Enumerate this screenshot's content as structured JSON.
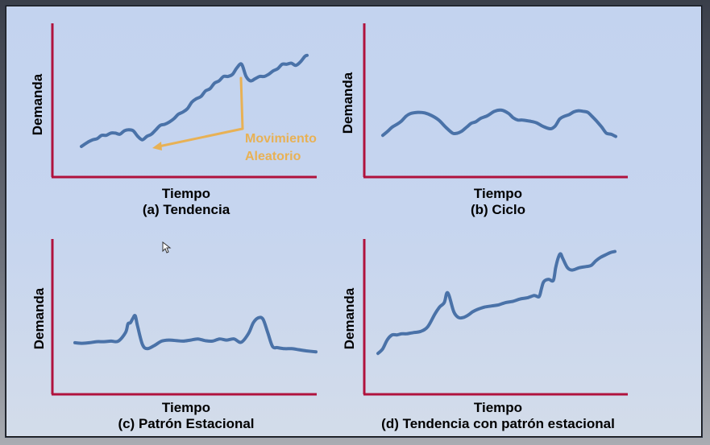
{
  "colors": {
    "axis": "#b0123d",
    "series": "#4a72a8",
    "annotation": "#e8b155"
  },
  "chart_data": [
    {
      "type": "line",
      "xlabel": "Tiempo",
      "ylabel": "Demanda",
      "caption": "(a) Tendencia",
      "annotation": {
        "line1": "Movimiento",
        "line2": "Aleatorio"
      },
      "series": [
        {
          "x": [
            0,
            3,
            5,
            7,
            9,
            11,
            13,
            15,
            17,
            19,
            21,
            23,
            25,
            27,
            29,
            31,
            33,
            35,
            37,
            39,
            41,
            43,
            45,
            47,
            49,
            51,
            53,
            55,
            57,
            59,
            61,
            63,
            65,
            67,
            69,
            71,
            73,
            75,
            77,
            79,
            81,
            83,
            85,
            87,
            89,
            91,
            93,
            95,
            97,
            99,
            100
          ],
          "values": [
            8,
            12,
            14,
            15,
            18,
            18,
            20,
            20,
            19,
            22,
            23,
            22,
            17,
            14,
            17,
            19,
            23,
            27,
            28,
            30,
            33,
            37,
            39,
            42,
            48,
            51,
            53,
            58,
            60,
            65,
            67,
            71,
            71,
            73,
            79,
            82,
            71,
            67,
            69,
            71,
            71,
            73,
            76,
            78,
            82,
            82,
            83,
            81,
            84,
            89,
            90
          ]
        }
      ]
    },
    {
      "type": "line",
      "xlabel": "Tiempo",
      "ylabel": "Demanda",
      "caption": "(b) Ciclo",
      "series": [
        {
          "x": [
            0,
            2,
            4,
            6,
            8,
            10,
            12,
            15,
            18,
            21,
            24,
            27,
            30,
            32,
            34,
            36,
            38,
            40,
            42,
            45,
            48,
            51,
            54,
            56,
            58,
            60,
            63,
            66,
            69,
            72,
            74,
            76,
            78,
            80,
            82,
            84,
            86,
            88,
            90,
            92,
            94,
            96,
            98,
            100
          ],
          "values": [
            10,
            17,
            25,
            30,
            36,
            45,
            50,
            52,
            51,
            46,
            38,
            25,
            14,
            14,
            18,
            25,
            32,
            35,
            41,
            46,
            54,
            56,
            50,
            42,
            38,
            38,
            36,
            33,
            26,
            22,
            27,
            40,
            45,
            48,
            53,
            55,
            54,
            52,
            44,
            35,
            25,
            14,
            12,
            8
          ]
        }
      ]
    },
    {
      "type": "line",
      "xlabel": "Tiempo",
      "ylabel": "Demanda",
      "caption": "(c) Patrón Estacional",
      "series": [
        {
          "x": [
            0,
            3,
            6,
            9,
            12,
            15,
            18,
            21,
            22,
            23,
            24,
            25,
            26,
            28,
            30,
            33,
            36,
            39,
            42,
            45,
            48,
            51,
            54,
            57,
            60,
            63,
            66,
            69,
            72,
            74,
            76,
            78,
            80,
            82,
            84,
            87,
            90,
            93,
            96,
            100
          ],
          "values": [
            21,
            20,
            21,
            23,
            23,
            24,
            24,
            40,
            56,
            58,
            66,
            71,
            52,
            18,
            10,
            16,
            24,
            26,
            25,
            24,
            26,
            28,
            25,
            24,
            28,
            26,
            28,
            22,
            38,
            58,
            67,
            65,
            40,
            14,
            12,
            10,
            10,
            8,
            6,
            4
          ]
        }
      ]
    },
    {
      "type": "line",
      "xlabel": "Tiempo",
      "ylabel": "Demanda",
      "caption": "(d) Tendencia con patrón estacional",
      "series": [
        {
          "x": [
            0,
            2,
            4,
            6,
            8,
            10,
            12,
            15,
            18,
            21,
            24,
            26,
            28,
            29,
            30,
            32,
            34,
            36,
            38,
            40,
            42,
            45,
            48,
            51,
            54,
            57,
            60,
            63,
            66,
            68,
            69,
            70,
            72,
            74,
            75,
            76,
            77,
            78,
            80,
            82,
            85,
            88,
            90,
            92,
            94,
            96,
            98,
            100
          ],
          "values": [
            4,
            8,
            16,
            20,
            20,
            21,
            21,
            22,
            23,
            27,
            38,
            44,
            48,
            56,
            54,
            40,
            35,
            35,
            37,
            40,
            42,
            44,
            45,
            46,
            48,
            49,
            51,
            52,
            54,
            53,
            60,
            66,
            68,
            67,
            78,
            86,
            90,
            86,
            78,
            76,
            78,
            79,
            80,
            84,
            87,
            89,
            91,
            92
          ]
        }
      ]
    }
  ]
}
